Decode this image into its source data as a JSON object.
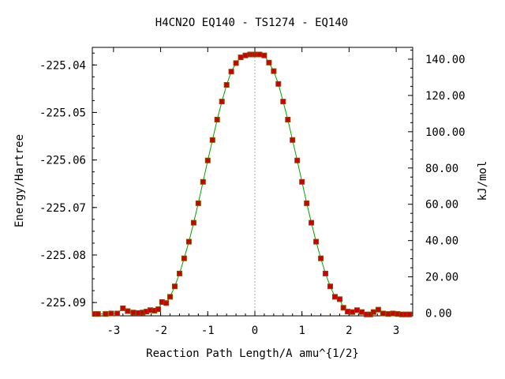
{
  "chart_data": {
    "type": "line",
    "title": "H4CN2O    EQ140 - TS1274 - EQ140",
    "xlabel": "Reaction Path Length/A amu^{1/2}",
    "ylabel": "Energy/Hartree",
    "y2label": "kJ/mol",
    "xlim": [
      -3.45,
      3.35
    ],
    "ylim": [
      -225.0928,
      -225.0363
    ],
    "y2lim": [
      -1.5,
      146.5
    ],
    "x_ticks": [
      -3,
      -2,
      -1,
      0,
      1,
      2,
      3
    ],
    "x_tick_labels": [
      "-3",
      "-2",
      "-1",
      "0",
      "1",
      "2",
      "3"
    ],
    "y_ticks": [
      -225.04,
      -225.05,
      -225.06,
      -225.07,
      -225.08,
      -225.09
    ],
    "y_tick_labels": [
      "-225.04",
      "-225.05",
      "-225.06",
      "-225.07",
      "-225.08",
      "-225.09"
    ],
    "y2_ticks": [
      0,
      20,
      40,
      60,
      80,
      100,
      120,
      140
    ],
    "y2_tick_labels": [
      "0.00",
      "20.00",
      "40.00",
      "60.00",
      "80.00",
      "100.00",
      "120.00",
      "140.00"
    ],
    "grid": false,
    "ts_marker_x": 0,
    "colors": {
      "line": "#00a000",
      "points": "#cc0000",
      "point_edge": "#8a4a00",
      "ts_marker": "#aaaaaa"
    },
    "series": [
      {
        "x": [
          -3.4,
          -3.33,
          -3.17,
          -3.05,
          -2.92,
          -2.8,
          -2.7,
          -2.58,
          -2.47,
          -2.38,
          -2.3,
          -2.22,
          -2.13,
          -2.05,
          -1.97,
          -1.88,
          -1.8,
          -1.7,
          -1.6,
          -1.5,
          -1.4,
          -1.3,
          -1.2,
          -1.1,
          -1.0,
          -0.9,
          -0.8,
          -0.7,
          -0.6,
          -0.5,
          -0.4,
          -0.3,
          -0.2,
          -0.1,
          -0.05,
          0.0,
          0.05,
          0.1,
          0.2,
          0.3,
          0.4,
          0.5,
          0.6,
          0.7,
          0.8,
          0.9,
          1.0,
          1.1,
          1.2,
          1.3,
          1.4,
          1.5,
          1.6,
          1.7,
          1.8,
          1.88,
          1.97,
          2.07,
          2.17,
          2.27,
          2.37,
          2.45,
          2.52,
          2.62,
          2.72,
          2.83,
          2.93,
          3.03,
          3.12,
          3.2,
          3.28
        ],
        "y": [
          -225.0924,
          -225.0924,
          -225.0924,
          -225.0923,
          -225.0923,
          -225.0912,
          -225.0918,
          -225.0921,
          -225.0922,
          -225.0921,
          -225.0919,
          -225.0916,
          -225.0917,
          -225.0914,
          -225.0899,
          -225.0901,
          -225.0888,
          -225.0866,
          -225.0839,
          -225.0807,
          -225.0772,
          -225.0732,
          -225.0691,
          -225.0646,
          -225.0601,
          -225.0558,
          -225.0515,
          -225.0477,
          -225.0442,
          -225.0414,
          -225.0396,
          -225.0384,
          -225.038,
          -225.0378,
          -225.0378,
          -225.0378,
          -225.0378,
          -225.0378,
          -225.038,
          -225.0395,
          -225.0413,
          -225.044,
          -225.0477,
          -225.0515,
          -225.0558,
          -225.0601,
          -225.0646,
          -225.0691,
          -225.0732,
          -225.0772,
          -225.0807,
          -225.0839,
          -225.0866,
          -225.0888,
          -225.0893,
          -225.0911,
          -225.0919,
          -225.092,
          -225.0916,
          -225.092,
          -225.0925,
          -225.0925,
          -225.092,
          -225.0915,
          -225.0923,
          -225.0924,
          -225.0923,
          -225.0924,
          -225.0925,
          -225.0925,
          -225.0925
        ]
      }
    ]
  }
}
